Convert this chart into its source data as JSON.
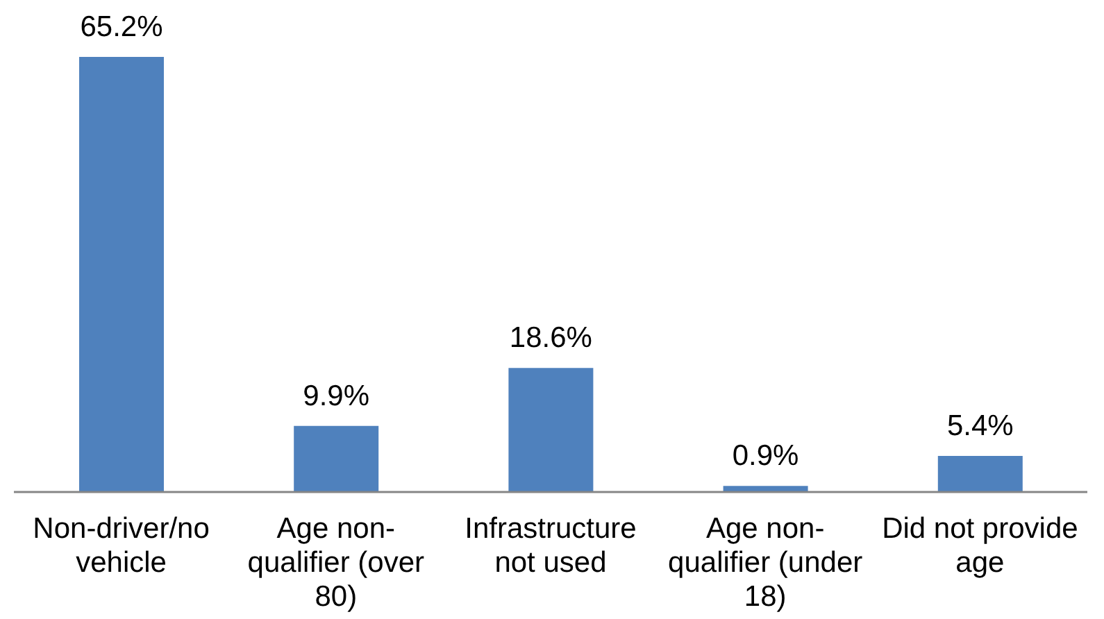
{
  "chart_data": {
    "type": "bar",
    "categories": [
      "Non-driver/no vehicle",
      "Age non-qualifier (over 80)",
      "Infrastructure not used",
      "Age non-qualifier (under 18)",
      "Did not provide age"
    ],
    "values": [
      65.2,
      9.9,
      18.6,
      0.9,
      5.4
    ],
    "color": "#4f81bd",
    "value_labels": [
      "65.2%",
      "9.9%",
      "18.6%",
      "0.9%",
      "5.4%"
    ],
    "tick_labels": "x"
  }
}
